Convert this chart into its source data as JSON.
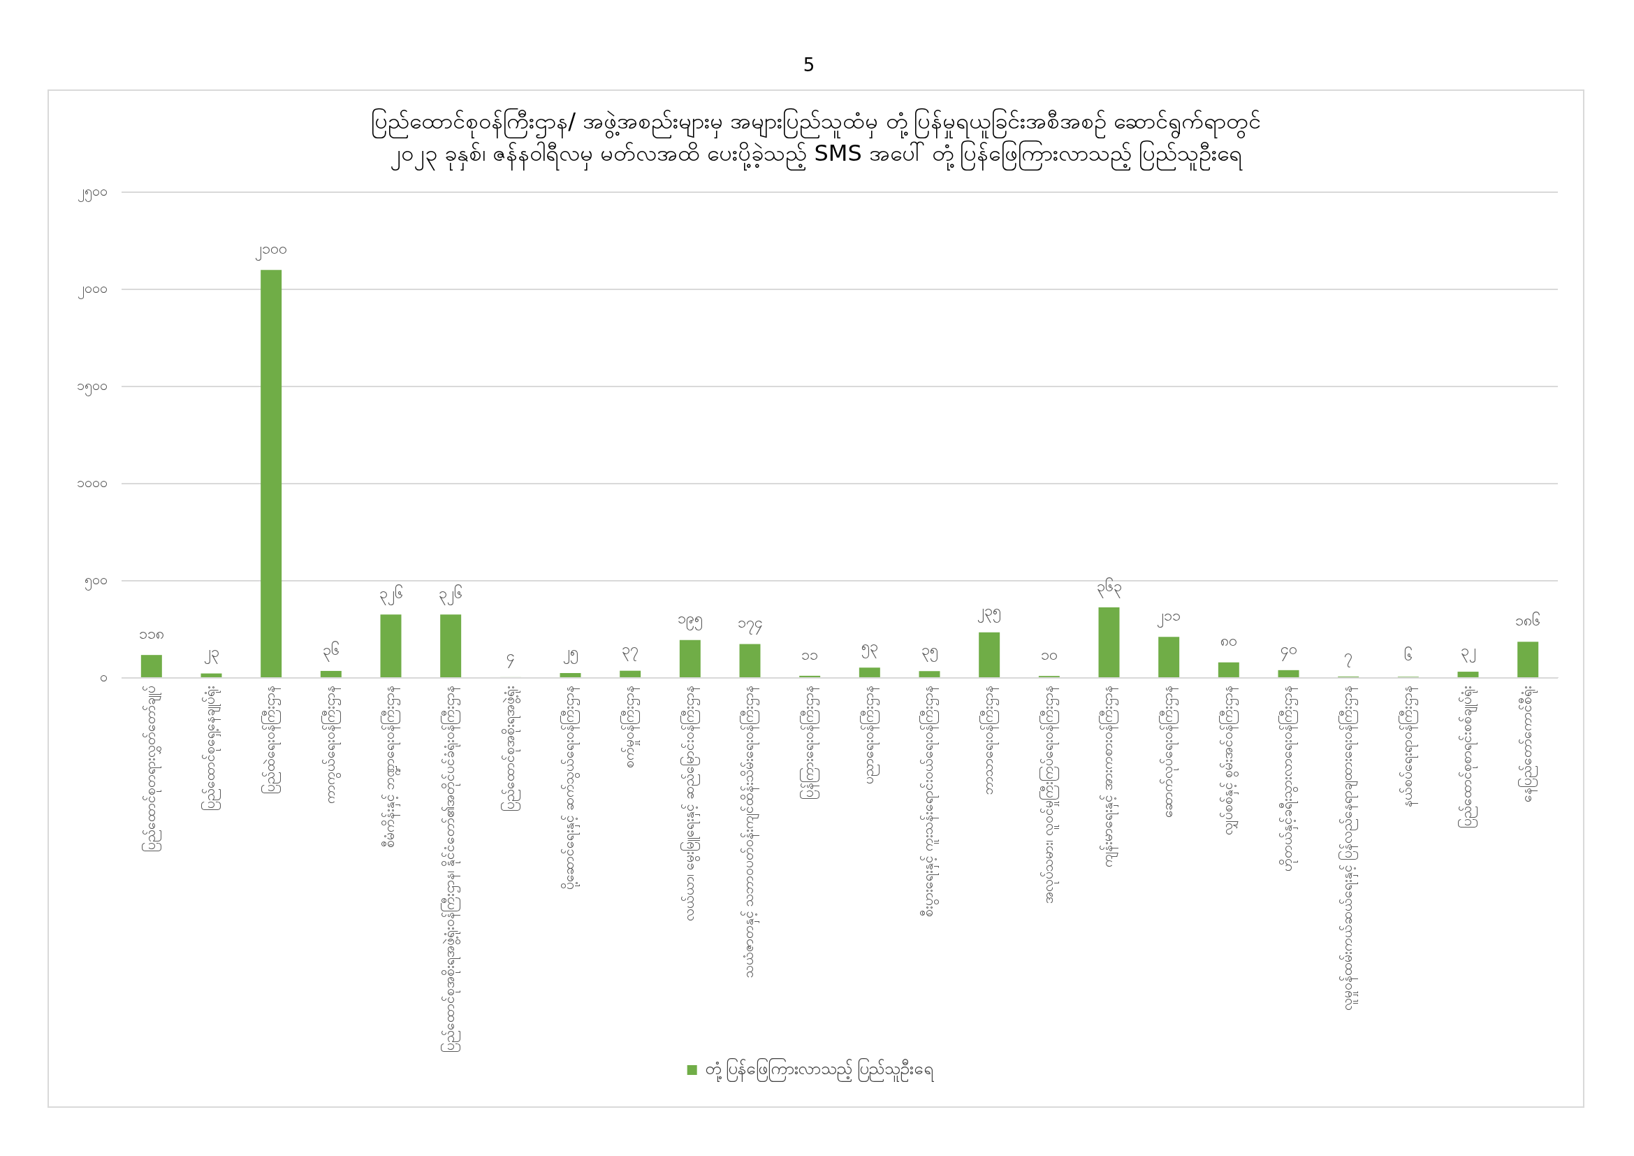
{
  "chart_data": {
    "type": "bar",
    "title": [
      "ပြည်ထောင်စုဝန်ကြီးဌာန/ အဖွဲ့အစည်းများမှ အများပြည်သူထံမှ တုံ့ပြန်မှုရယူခြင်းအစီအစဉ် ဆောင်ရွက်ရာတွင်",
      "၂၀၂၃ ခုနှစ်၊ ဇန်နဝါရီလမှ မတ်လအထိ ပေးပို့ခဲ့သည့် SMS အပေါ် တုံ့ပြန်ဖြေကြားလာသည့် ပြည်သူဦးရေ"
    ],
    "annotations": [
      "5"
    ],
    "categories": [
      "ပြည်ထောင်စုတရားလွှတ်တော်ချုပ်",
      "ပြည်ထောင်စုရှေ့နေချုပ်ရုံး",
      "ပြည်ထဲရေးဝန်ကြီးဌာန",
      "ကာကွယ်ရေးဝန်ကြီးဌာန",
      "စီမံကိန်းနှင့် ဘဏ္ဍာရေးဝန်ကြီးဌာန",
      "ပြည်ထောင်စုအစိုးရအဖွဲ့ရုံးဝန်ကြီးဌာန၊ နိုင်ငံတော်၏အတိုင်ပင်ခံရုံးဝန်ကြီးဌာန",
      "ပြည်ထောင်စုအစိုးရအဖွဲ့ရုံး",
      "ပို့ဆောင်ရေးနှင့် ဆက်သွယ်ရေးဝန်ကြီးဌာန",
      "စက်မှုဝန်ကြီးဌာန",
      "လယ်ယာ၊ မွေးမြူရေးနှင့် ဆည်မြောင်းဝန်ကြီးဌာန",
      "သယံဇာတနှင့် သဘာဝပတ်ဝန်းကျင်ထိန်းသိမ်းရေးဝန်ကြီးဌာန",
      "ပြန်ကြားရေးဝန်ကြီးဌာန",
      "ပညာရေးဝန်ကြီးဌာန",
      "စီးပွားရေးနှင့် ကူးသန်းရောင်းဝယ်ရေးဝန်ကြီးဌာန",
      "ဘာသာရေးဝန်ကြီးဌာန",
      "အလုပ်သမား၊ လူဝင်မှုကြီးကြပ်ရေးဝန်ကြီးဌာန",
      "ကျန်းမာရေးနှင့် အားကစားဝန်ကြီးဌာန",
      "ဆောက်လုပ်ရေးဝန်ကြီးဌာန",
      "လျှပ်စစ်နှင့် စွမ်းအင်ဝန်ကြီးဌာန",
      "ဟိုတယ်နှင့်ခရီးသွားလာရေးဝန်ကြီးဌာန",
      "လူမှုဝန်ထမ်းကယ်ဆယ်ရေးနှင့် ပြန်လည်နေရာချထားရေးဝန်ကြီးဌာန",
      "နယ်စပ်ရေးရာဝန်ကြီးဌာန",
      "ပြည်ထောင်စုစာရင်းစစ်ချုပ်ရုံး",
      "နေပြည်တော်ကောင်စီရုံး"
    ],
    "series": [
      {
        "name": "တုံ့ပြန်ဖြေကြားလာသည့် ပြည်သူဦးရေ",
        "color": "#70ad47",
        "values": [
          118,
          23,
          2100,
          36,
          326,
          326,
          4,
          25,
          37,
          195,
          174,
          11,
          53,
          35,
          235,
          10,
          363,
          211,
          80,
          40,
          7,
          6,
          32,
          186
        ],
        "value_labels": [
          "၁၁၈",
          "၂၃",
          "၂၁၀၀",
          "၃၆",
          "၃၂၆",
          "၃၂၆",
          "၄",
          "၂၅",
          "၃၇",
          "၁၉၅",
          "၁၇၄",
          "၁၁",
          "၅၃",
          "၃၅",
          "၂၃၅",
          "၁၀",
          "၃၆၃",
          "၂၁၁",
          "၈၀",
          "၄၀",
          "၇",
          "၆",
          "၃၂",
          "၁၈၆"
        ]
      }
    ],
    "ylim": [
      0,
      2500
    ],
    "yticks": [
      {
        "value": 0,
        "label": "၀"
      },
      {
        "value": 500,
        "label": "၅၀၀"
      },
      {
        "value": 1000,
        "label": "၁၀၀၀"
      },
      {
        "value": 1500,
        "label": "၁၅၀၀"
      },
      {
        "value": 2000,
        "label": "၂၀၀၀"
      },
      {
        "value": 2500,
        "label": "၂၅၀၀"
      }
    ],
    "grid": "y",
    "legend": "bottom"
  }
}
